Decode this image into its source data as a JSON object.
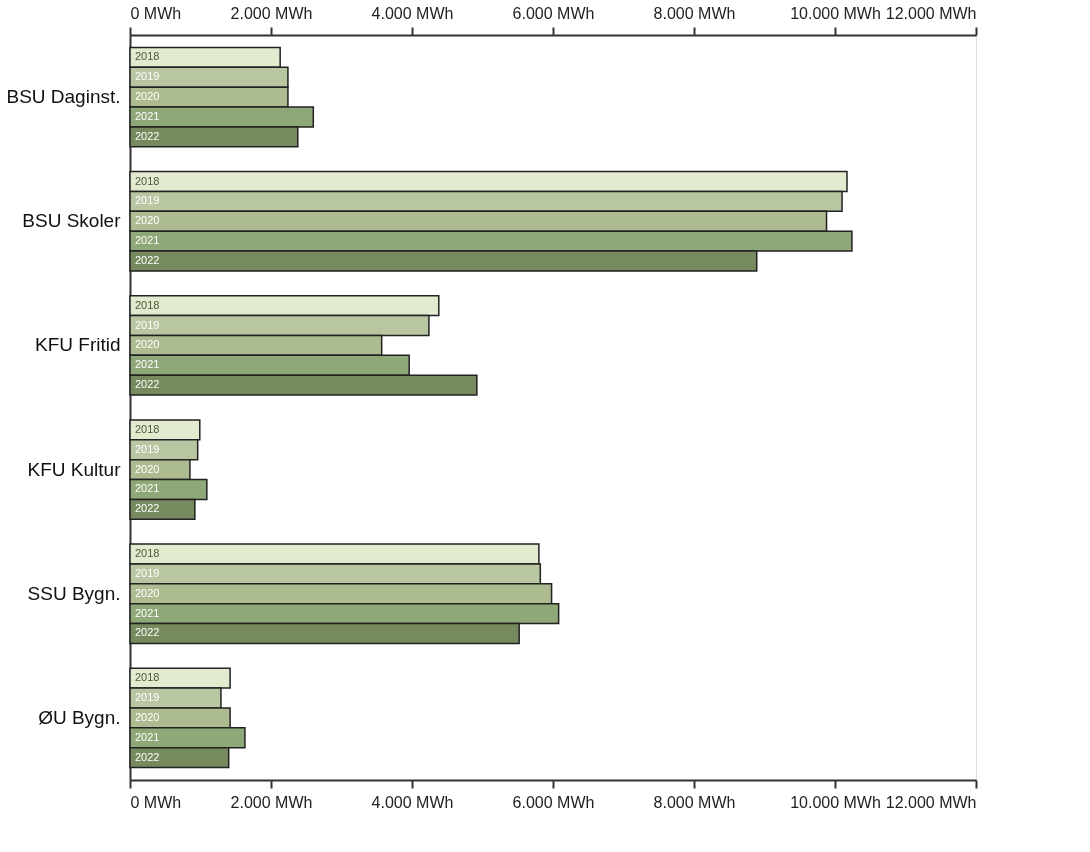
{
  "chart_data": {
    "type": "bar",
    "orientation": "horizontal",
    "categories": [
      "BSU Daginst.",
      "BSU Skoler",
      "KFU Fritid",
      "KFU Kultur",
      "SSU Bygn.",
      "ØU Bygn."
    ],
    "series": [
      {
        "name": "2018",
        "color": "#e2ead0",
        "values": [
          2130,
          10170,
          4380,
          990,
          5800,
          1420
        ]
      },
      {
        "name": "2019",
        "color": "#b8c6a2",
        "values": [
          2240,
          10100,
          4240,
          960,
          5820,
          1290
        ]
      },
      {
        "name": "2020",
        "color": "#adbc90",
        "values": [
          2240,
          9880,
          3570,
          850,
          5980,
          1420
        ]
      },
      {
        "name": "2021",
        "color": "#8fa877",
        "values": [
          2600,
          10240,
          3960,
          1090,
          6080,
          1630
        ]
      },
      {
        "name": "2022",
        "color": "#768a5e",
        "values": [
          2380,
          8890,
          4920,
          920,
          5520,
          1400
        ]
      }
    ],
    "xlim": [
      0,
      12000
    ],
    "xticks": [
      {
        "value": 0,
        "label": "0 MWh"
      },
      {
        "value": 2000,
        "label": "2.000 MWh"
      },
      {
        "value": 4000,
        "label": "4.000 MWh"
      },
      {
        "value": 6000,
        "label": "6.000 MWh"
      },
      {
        "value": 8000,
        "label": "8.000 MWh"
      },
      {
        "value": 10000,
        "label": "10.000 MWh"
      },
      {
        "value": 12000,
        "label": "12.000 MWh"
      }
    ],
    "x2lim": [
      0,
      12000
    ],
    "x2ticks": [
      {
        "value": 0,
        "label": "0 MWh"
      },
      {
        "value": 2000,
        "label": "2.000 MWh"
      },
      {
        "value": 4000,
        "label": "4.000 MWh"
      },
      {
        "value": 6000,
        "label": "6.000 MWh"
      },
      {
        "value": 8000,
        "label": "8.000 MWh"
      },
      {
        "value": 10000,
        "label": "10.000 MWh"
      },
      {
        "value": 12000,
        "label": "12.000 MWh"
      }
    ],
    "grid": false
  }
}
